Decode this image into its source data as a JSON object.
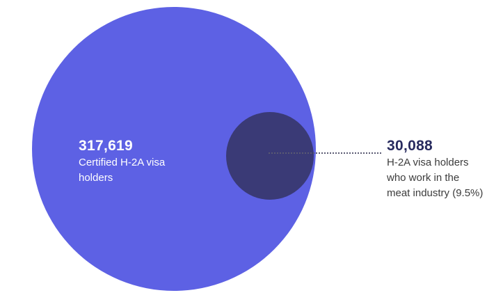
{
  "chart_data": {
    "type": "proportional-circles",
    "title": "",
    "legend_position": "none",
    "circles": [
      {
        "label": "Certified H-2A visa holders",
        "display_value": "317,619",
        "value": 317619,
        "color": "#5d61e4",
        "label_text_color": "#ffffff"
      },
      {
        "label": "H-2A visa holders who work in the meat industry",
        "display_value": "30,088",
        "value": 30088,
        "percent_of_total": "9.5%",
        "color": "#3a3a76",
        "label_text_color": "#282b5f"
      }
    ],
    "annotation": "Inner circle area is 9.5% of outer circle area; dotted leader line connects inner circle to its label"
  },
  "colors": {
    "background": "#ffffff",
    "big_circle": "#5d61e4",
    "small_circle": "#3a3a76",
    "leader_line": "#5a5a72",
    "big_label_text": "#ffffff",
    "small_label_value": "#282b5f",
    "small_label_text": "#3c3c3c"
  },
  "big_label": {
    "value": "317,619",
    "lines": [
      "Certified H-2A visa",
      "holders"
    ]
  },
  "small_label": {
    "value": "30,088",
    "lines": [
      "H-2A visa holders",
      "who work in the",
      "meat industry (9.5%)"
    ]
  }
}
